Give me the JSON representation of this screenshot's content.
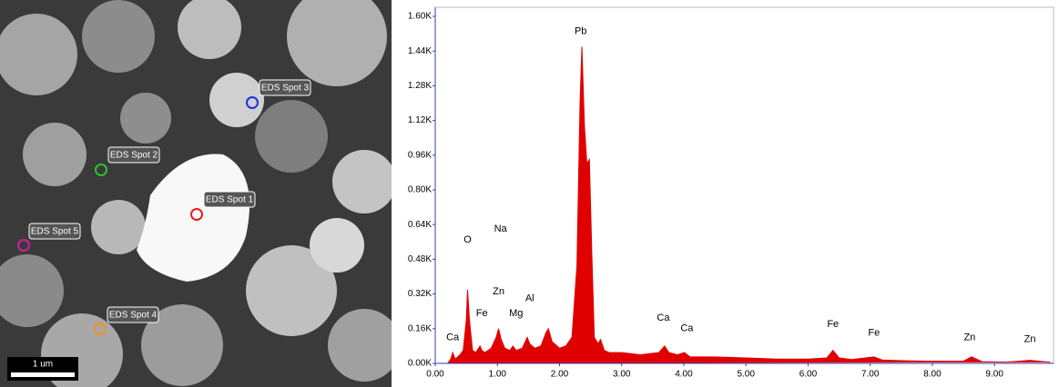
{
  "image": {
    "spots": [
      {
        "label": "EDS Spot 1"
      },
      {
        "label": "EDS Spot 2"
      },
      {
        "label": "EDS Spot 3"
      },
      {
        "label": "EDS Spot 4"
      },
      {
        "label": "EDS Spot 5"
      }
    ],
    "scale_bar": "1 um"
  },
  "chart_data": {
    "type": "area",
    "x": [
      0.2,
      0.25,
      0.28,
      0.32,
      0.4,
      0.45,
      0.5,
      0.52,
      0.55,
      0.6,
      0.65,
      0.7,
      0.72,
      0.75,
      0.8,
      0.9,
      0.98,
      1.02,
      1.06,
      1.12,
      1.2,
      1.25,
      1.3,
      1.4,
      1.48,
      1.52,
      1.6,
      1.7,
      1.78,
      1.82,
      1.88,
      2.0,
      2.1,
      2.2,
      2.28,
      2.33,
      2.36,
      2.4,
      2.44,
      2.48,
      2.52,
      2.56,
      2.62,
      2.66,
      2.72,
      2.8,
      3.0,
      3.3,
      3.6,
      3.69,
      3.76,
      3.9,
      4.01,
      4.1,
      4.5,
      5.0,
      5.5,
      6.0,
      6.3,
      6.4,
      6.5,
      6.7,
      7.06,
      7.2,
      7.6,
      8.0,
      8.5,
      8.63,
      8.8,
      9.2,
      9.57,
      9.9
    ],
    "values": [
      0.0,
      0.02,
      0.05,
      0.02,
      0.04,
      0.06,
      0.2,
      0.34,
      0.2,
      0.06,
      0.05,
      0.07,
      0.08,
      0.06,
      0.05,
      0.07,
      0.12,
      0.16,
      0.11,
      0.07,
      0.06,
      0.08,
      0.06,
      0.07,
      0.12,
      0.09,
      0.07,
      0.08,
      0.14,
      0.16,
      0.1,
      0.07,
      0.08,
      0.12,
      0.45,
      1.2,
      1.46,
      1.1,
      0.92,
      0.94,
      0.5,
      0.12,
      0.09,
      0.11,
      0.06,
      0.05,
      0.05,
      0.04,
      0.05,
      0.08,
      0.05,
      0.04,
      0.05,
      0.03,
      0.03,
      0.025,
      0.02,
      0.02,
      0.025,
      0.06,
      0.025,
      0.018,
      0.03,
      0.015,
      0.012,
      0.01,
      0.01,
      0.03,
      0.008,
      0.006,
      0.014,
      0.005
    ],
    "color": "#e00000",
    "xlim": [
      0,
      9.95
    ],
    "ylim": [
      0,
      1.6
    ],
    "xticks": [
      {
        "value": 0,
        "label": "0.00"
      },
      {
        "value": 1,
        "label": "1.00"
      },
      {
        "value": 2,
        "label": "2.00"
      },
      {
        "value": 3,
        "label": "3.00"
      },
      {
        "value": 4,
        "label": "4.00"
      },
      {
        "value": 5,
        "label": "5.00"
      },
      {
        "value": 6,
        "label": "6.00"
      },
      {
        "value": 7,
        "label": "7.00"
      },
      {
        "value": 8,
        "label": "8.00"
      },
      {
        "value": 9,
        "label": "9.00"
      }
    ],
    "yticks": [
      {
        "value": 0,
        "label": "0.00K"
      },
      {
        "value": 0.16,
        "label": "0.16K"
      },
      {
        "value": 0.32,
        "label": "0.32K"
      },
      {
        "value": 0.48,
        "label": "0.48K"
      },
      {
        "value": 0.64,
        "label": "0.64K"
      },
      {
        "value": 0.8,
        "label": "0.80K"
      },
      {
        "value": 0.96,
        "label": "0.96K"
      },
      {
        "value": 1.12,
        "label": "1.12K"
      },
      {
        "value": 1.28,
        "label": "1.28K"
      },
      {
        "value": 1.44,
        "label": "1.44K"
      },
      {
        "value": 1.6,
        "label": "1.60K"
      }
    ],
    "annotations": [
      {
        "text": "Ca",
        "x": 0.28,
        "y": 0.12
      },
      {
        "text": "O",
        "x": 0.52,
        "y": 0.57
      },
      {
        "text": "Na",
        "x": 1.05,
        "y": 0.62
      },
      {
        "text": "Fe",
        "x": 0.75,
        "y": 0.23
      },
      {
        "text": "Zn",
        "x": 1.02,
        "y": 0.33
      },
      {
        "text": "Mg",
        "x": 1.3,
        "y": 0.23
      },
      {
        "text": "Al",
        "x": 1.52,
        "y": 0.3
      },
      {
        "text": "Pb",
        "x": 2.34,
        "y": 1.53
      },
      {
        "text": "Ca",
        "x": 3.67,
        "y": 0.21
      },
      {
        "text": "Ca",
        "x": 4.05,
        "y": 0.16
      },
      {
        "text": "Fe",
        "x": 6.4,
        "y": 0.18
      },
      {
        "text": "Fe",
        "x": 7.06,
        "y": 0.14
      },
      {
        "text": "Zn",
        "x": 8.6,
        "y": 0.12
      },
      {
        "text": "Zn",
        "x": 9.57,
        "y": 0.11
      }
    ]
  }
}
